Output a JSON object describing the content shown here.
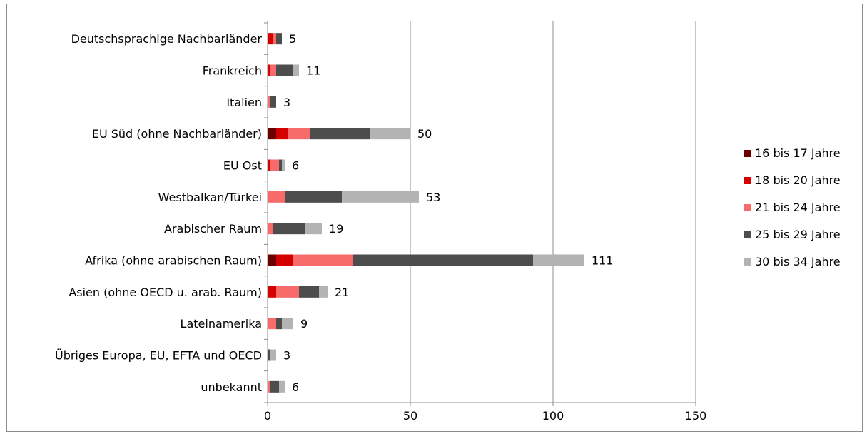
{
  "chart_data": {
    "type": "bar",
    "orientation": "horizontal",
    "stacked": true,
    "categories": [
      "Deutschsprachige Nachbarländer",
      "Frankreich",
      "Italien",
      "EU Süd (ohne Nachbarländer)",
      "EU Ost",
      "Westbalkan/Türkei",
      "Arabischer Raum",
      "Afrika (ohne arabischen Raum)",
      "Asien (ohne OECD u. arab. Raum)",
      "Lateinamerika",
      "Übriges Europa, EU, EFTA und OECD",
      "unbekannt"
    ],
    "series": [
      {
        "name": "16 bis 17 Jahre",
        "color": "#6b0000",
        "values": [
          0,
          0,
          0,
          3,
          0,
          0,
          0,
          3,
          0,
          0,
          0,
          0
        ]
      },
      {
        "name": "18 bis 20 Jahre",
        "color": "#d40000",
        "values": [
          2,
          1,
          0,
          4,
          1,
          0,
          0,
          6,
          3,
          0,
          0,
          0
        ]
      },
      {
        "name": "21 bis 24 Jahre",
        "color": "#f76b6b",
        "values": [
          1,
          2,
          1,
          8,
          3,
          6,
          2,
          21,
          8,
          3,
          0,
          1
        ]
      },
      {
        "name": "25 bis 29 Jahre",
        "color": "#4d4d4d",
        "values": [
          2,
          6,
          2,
          21,
          1,
          20,
          11,
          63,
          7,
          2,
          1,
          3
        ]
      },
      {
        "name": "30 bis 34 Jahre",
        "color": "#b3b3b3",
        "values": [
          0,
          2,
          0,
          14,
          1,
          27,
          6,
          18,
          3,
          4,
          2,
          2
        ]
      }
    ],
    "totals": [
      5,
      11,
      3,
      50,
      6,
      53,
      19,
      111,
      21,
      9,
      3,
      6
    ],
    "xlim": [
      0,
      150
    ],
    "xticks": [
      0,
      50,
      100,
      150
    ],
    "grid": "vertical",
    "legend": "right"
  }
}
